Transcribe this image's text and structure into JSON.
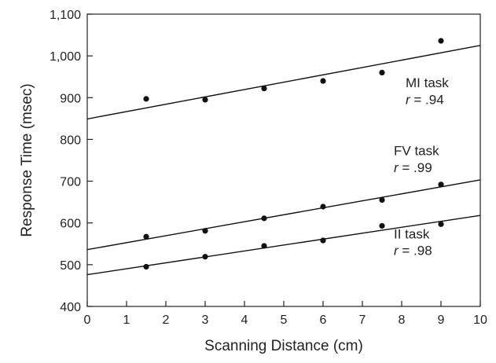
{
  "chart_data": {
    "type": "scatter",
    "title": "",
    "xlabel": "Scanning Distance (cm)",
    "ylabel": "Response Time (msec)",
    "xlim": [
      0,
      10
    ],
    "ylim": [
      400,
      1100
    ],
    "x_ticks": [
      0,
      1,
      2,
      3,
      4,
      5,
      6,
      7,
      8,
      9,
      10
    ],
    "x_tick_labels": [
      "0",
      "1",
      "2",
      "3",
      "4",
      "5",
      "6",
      "7",
      "8",
      "9",
      "10"
    ],
    "y_ticks": [
      400,
      500,
      600,
      700,
      800,
      900,
      1000,
      1100
    ],
    "y_tick_labels": [
      "400",
      "500",
      "600",
      "700",
      "800",
      "900",
      "1,000",
      "1,100"
    ],
    "grid": false,
    "legend": "none",
    "series": [
      {
        "name": "MI task",
        "r_label": "r",
        "r_value": "= .94",
        "x": [
          1.5,
          3,
          4.5,
          6,
          7.5,
          9
        ],
        "y": [
          897,
          895,
          922,
          940,
          960,
          1036
        ],
        "fit": {
          "x0": 0,
          "y0": 849,
          "x1": 10,
          "y1": 1025
        },
        "label_anchor": [
          8.1,
          925,
          885
        ]
      },
      {
        "name": "FV task",
        "r_label": "r",
        "r_value": "= .99",
        "x": [
          1.5,
          3,
          4.5,
          6,
          7.5,
          9
        ],
        "y": [
          567,
          581,
          611,
          639,
          655,
          692
        ],
        "fit": {
          "x0": 0,
          "y0": 536,
          "x1": 10,
          "y1": 703
        },
        "label_anchor": [
          7.8,
          762,
          722
        ]
      },
      {
        "name": "II task",
        "r_label": "r",
        "r_value": "= .98",
        "x": [
          1.5,
          3,
          4.5,
          6,
          7.5,
          9
        ],
        "y": [
          495,
          519,
          545,
          558,
          593,
          597
        ],
        "fit": {
          "x0": 0,
          "y0": 476,
          "x1": 10,
          "y1": 618
        },
        "label_anchor": [
          7.8,
          563,
          523
        ]
      }
    ]
  }
}
